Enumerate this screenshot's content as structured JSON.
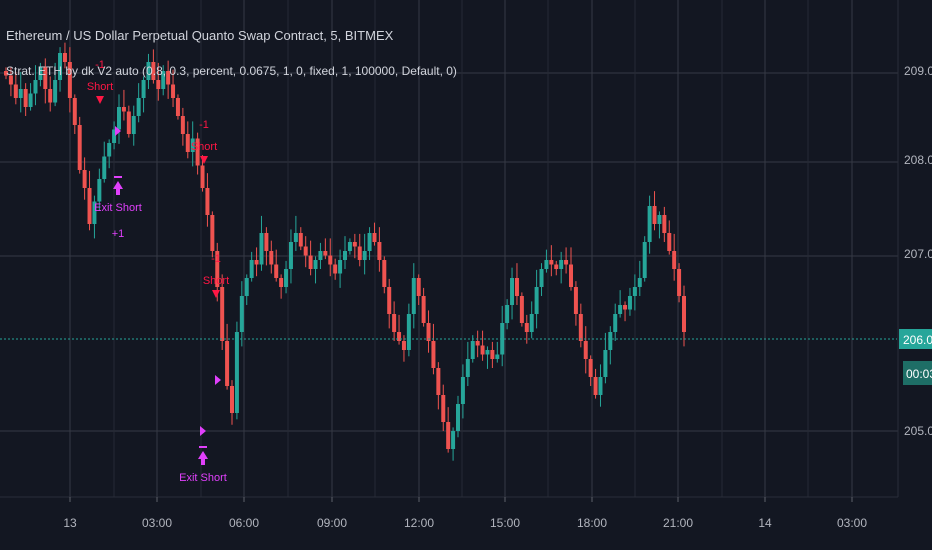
{
  "header": {
    "symbol_line": "Ethereum / US Dollar Perpetual Quanto Swap Contract, 5, BITMEX",
    "strategy_line": "Strat. ETH by dk V2 auto (0.8, 0.3, percent, 0.0675, 1, 0, fixed, 1, 100000, Default, 0)"
  },
  "price_axis": {
    "ticks": [
      "209.00",
      "208.00",
      "207.00",
      "205.00"
    ],
    "last_price": "206.05",
    "countdown": "00:03"
  },
  "time_axis": {
    "ticks": [
      "13",
      "03:00",
      "06:00",
      "09:00",
      "12:00",
      "15:00",
      "18:00",
      "21:00",
      "14",
      "03:00"
    ]
  },
  "colors": {
    "background": "#131722",
    "grid": "#363a45",
    "up": "#26a69a",
    "down": "#ef5350",
    "last_price": "#26a69a",
    "exit_marker": "#e040fb",
    "entry_marker": "#ff1744"
  },
  "markers": [
    {
      "kind": "entry",
      "label": "-1",
      "sub": "Short"
    },
    {
      "kind": "entry",
      "label": "-1",
      "sub": "Short"
    },
    {
      "kind": "entry",
      "label": "-1",
      "sub": "Short"
    },
    {
      "kind": "exit",
      "label": "Exit Short",
      "sub": "+1"
    },
    {
      "kind": "exit",
      "label": "Exit Short",
      "sub": ""
    }
  ],
  "chart_data": {
    "type": "candlestick",
    "ylim": [
      204.25,
      209.8
    ],
    "closes": [
      208.95,
      208.85,
      208.7,
      208.8,
      208.6,
      208.75,
      208.9,
      209.05,
      208.8,
      208.65,
      208.9,
      209.2,
      209.1,
      208.7,
      208.4,
      207.9,
      207.7,
      207.3,
      207.55,
      207.8,
      208.05,
      208.2,
      208.35,
      208.6,
      208.55,
      208.3,
      208.5,
      208.7,
      208.9,
      209.1,
      208.9,
      208.8,
      209.0,
      208.85,
      208.7,
      208.5,
      208.3,
      208.1,
      208.25,
      207.95,
      207.7,
      207.4,
      207.0,
      206.6,
      206.0,
      205.5,
      205.2,
      206.1,
      206.5,
      206.7,
      206.9,
      206.85,
      207.2,
      207.0,
      206.85,
      206.7,
      206.6,
      206.8,
      207.1,
      207.2,
      207.05,
      206.95,
      206.8,
      206.9,
      207.0,
      206.95,
      206.85,
      206.75,
      206.9,
      207.0,
      207.1,
      207.05,
      206.9,
      207.0,
      207.2,
      207.1,
      206.9,
      206.6,
      206.3,
      206.1,
      206.0,
      205.9,
      206.3,
      206.7,
      206.5,
      206.2,
      206.0,
      205.7,
      205.4,
      205.1,
      204.8,
      205.0,
      205.3,
      205.6,
      205.8,
      206.0,
      205.95,
      205.85,
      205.9,
      205.8,
      205.85,
      206.2,
      206.4,
      206.7,
      206.5,
      206.2,
      206.1,
      206.3,
      206.6,
      206.8,
      206.9,
      206.85,
      206.8,
      206.9,
      206.85,
      206.6,
      206.3,
      206.0,
      205.8,
      205.6,
      205.4,
      205.6,
      205.9,
      206.1,
      206.3,
      206.4,
      206.35,
      206.5,
      206.6,
      206.7,
      207.1,
      207.5,
      207.3,
      207.4,
      207.2,
      207.0,
      206.8,
      206.5,
      206.1
    ]
  }
}
